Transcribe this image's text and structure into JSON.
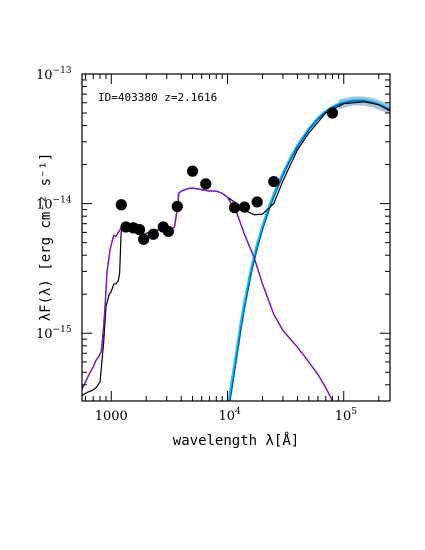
{
  "chart_data": {
    "type": "scatter",
    "title": "",
    "annotation": "ID=403380 z=2.1616",
    "xlabel": "wavelength λ[Å]",
    "ylabel": "λF(λ) [erg cm⁻² s⁻¹]",
    "xscale": "log",
    "yscale": "log",
    "xlim": [
      560,
      250000
    ],
    "ylim": [
      3e-16,
      1e-13
    ],
    "x_ticks": [
      {
        "value": 1000,
        "mantissa": "1000",
        "exp": ""
      },
      {
        "value": 10000,
        "mantissa": "10",
        "exp": "4"
      },
      {
        "value": 100000,
        "mantissa": "10",
        "exp": "5"
      }
    ],
    "y_ticks": [
      {
        "value": 1e-15,
        "mantissa": "10",
        "exp": "−15"
      },
      {
        "value": 1e-14,
        "mantissa": "10",
        "exp": "−14"
      },
      {
        "value": 1e-13,
        "mantissa": "10",
        "exp": "−13"
      }
    ],
    "colors": {
      "stellar_galaxy": "#000000",
      "total_model": "#7a1bb5",
      "dust_component": "#1f4fa8",
      "dust_component_alt": "#00d0ff",
      "dust_uncertainty": "#a7c3d8",
      "points": "#000000"
    },
    "points": [
      {
        "x": 1220,
        "y": 9.8e-15
      },
      {
        "x": 1340,
        "y": 6.6e-15
      },
      {
        "x": 1550,
        "y": 6.5e-15
      },
      {
        "x": 1750,
        "y": 6.3e-15
      },
      {
        "x": 1900,
        "y": 5.3e-15
      },
      {
        "x": 2300,
        "y": 5.8e-15
      },
      {
        "x": 2800,
        "y": 6.6e-15
      },
      {
        "x": 3100,
        "y": 6.1e-15
      },
      {
        "x": 3700,
        "y": 9.5e-15
      },
      {
        "x": 5000,
        "y": 1.78e-14
      },
      {
        "x": 6500,
        "y": 1.42e-14
      },
      {
        "x": 11500,
        "y": 9.3e-15
      },
      {
        "x": 14000,
        "y": 9.4e-15
      },
      {
        "x": 18000,
        "y": 1.03e-14
      },
      {
        "x": 25000,
        "y": 1.48e-14
      },
      {
        "x": 80000,
        "y": 5e-14
      }
    ],
    "series": [
      {
        "component": "stellar_galaxy",
        "x": [
          560,
          620,
          680,
          740,
          800,
          860,
          900,
          960,
          1000,
          1050,
          1100,
          1150,
          1180,
          1216,
          1250,
          1300,
          1400,
          1500,
          1600,
          1800,
          1900,
          2000,
          2200,
          2400,
          2600,
          2900,
          3200,
          3500,
          3650,
          3750,
          3800,
          4000,
          4500,
          5000,
          5500,
          6000,
          7000,
          8000,
          9000,
          10000,
          12000,
          14000,
          17000,
          20000,
          25000,
          30000,
          40000,
          50000,
          70000,
          100000,
          150000,
          200000,
          250000
        ],
        "y": [
          3.3e-16,
          3.5e-16,
          3.6e-16,
          3.8e-16,
          4.2e-16,
          8.5e-16,
          1.6e-15,
          2e-15,
          2.1e-15,
          2.4e-15,
          2.4e-15,
          2.55e-15,
          2.9e-15,
          6e-15,
          6.8e-15,
          6.6e-15,
          6.3e-15,
          6.1e-15,
          6.4e-15,
          6.2e-15,
          5.8e-15,
          5.9e-15,
          6.1e-15,
          6.2e-15,
          6.3e-15,
          6.2e-15,
          6.3e-15,
          6.6e-15,
          8.5e-15,
          1.02e-14,
          1.2e-14,
          1.25e-14,
          1.3e-14,
          1.32e-14,
          1.3e-14,
          1.28e-14,
          1.25e-14,
          1.25e-14,
          1.2e-14,
          1.12e-14,
          1e-14,
          8.9e-15,
          8.2e-15,
          8.3e-15,
          1e-14,
          1.5e-14,
          2.6e-14,
          3.5e-14,
          5e-14,
          5.9e-14,
          6.1e-14,
          5.8e-14,
          5.2e-14
        ]
      },
      {
        "component": "total_model",
        "x": [
          560,
          600,
          650,
          700,
          740,
          780,
          820,
          850,
          880,
          920,
          980,
          1050,
          1100,
          1150,
          1216,
          1250,
          1300,
          1400,
          1500,
          1600,
          1800,
          1900,
          2000,
          2200,
          2400,
          2600,
          2900,
          3200,
          3500,
          3650,
          3750,
          3800,
          4000,
          4500,
          5000,
          5500,
          6000,
          7000,
          8000,
          9000,
          10000,
          12000,
          14000,
          17000,
          20000,
          25000,
          30000,
          40000,
          50000,
          60000,
          70000,
          80000
        ],
        "y": [
          3.7e-16,
          4.2e-16,
          4.9e-16,
          5.5e-16,
          6.2e-16,
          6.6e-16,
          7.2e-16,
          1e-15,
          1.5e-15,
          3e-15,
          4.5e-15,
          5.7e-15,
          5.6e-15,
          6e-15,
          6.5e-15,
          6.8e-15,
          6.6e-15,
          6.3e-15,
          6.1e-15,
          6.4e-15,
          6.2e-15,
          5.8e-15,
          5.9e-15,
          6.1e-15,
          6.2e-15,
          6.3e-15,
          6.2e-15,
          6.3e-15,
          6.6e-15,
          8.5e-15,
          1.02e-14,
          1.2e-14,
          1.25e-14,
          1.3e-14,
          1.32e-14,
          1.3e-14,
          1.28e-14,
          1.25e-14,
          1.25e-14,
          1.2e-14,
          1.12e-14,
          8.5e-15,
          5.8e-15,
          3.8e-15,
          2.4e-15,
          1.4e-15,
          1.05e-15,
          7.8e-16,
          6e-16,
          4.8e-16,
          3.8e-16,
          3e-16
        ]
      },
      {
        "component": "dust_component",
        "x": [
          10500,
          11000,
          12000,
          13000,
          14000,
          16000,
          18000,
          20000,
          23000,
          26000,
          30000,
          35000,
          40000,
          50000,
          60000,
          70000,
          80000,
          90000,
          100000,
          120000,
          150000,
          180000,
          200000,
          250000
        ],
        "y": [
          3e-16,
          3.9e-16,
          6.5e-16,
          1.05e-15,
          1.55e-15,
          2.9e-15,
          4.5e-15,
          6.3e-15,
          9.2e-15,
          1.22e-14,
          1.65e-14,
          2.2e-14,
          2.75e-14,
          3.7e-14,
          4.5e-14,
          5.1e-14,
          5.5e-14,
          5.8e-14,
          6e-14,
          6.2e-14,
          6.2e-14,
          6e-14,
          5.8e-14,
          5.3e-14
        ]
      },
      {
        "component": "dust_component_alt",
        "x": [
          10300,
          11000,
          12000,
          13000,
          14000,
          16000,
          18000,
          20000,
          23000,
          26000,
          30000,
          35000,
          40000,
          50000,
          60000,
          70000,
          80000,
          90000,
          100000,
          120000,
          150000,
          180000,
          200000,
          250000
        ],
        "y": [
          3e-16,
          4.4e-16,
          7.2e-16,
          1.15e-15,
          1.7e-15,
          3.1e-15,
          4.8e-15,
          6.6e-15,
          9.6e-15,
          1.27e-14,
          1.7e-14,
          2.25e-14,
          2.8e-14,
          3.75e-14,
          4.55e-14,
          5.15e-14,
          5.55e-14,
          5.85e-14,
          6.05e-14,
          6.25e-14,
          6.25e-14,
          6.05e-14,
          5.85e-14,
          5.35e-14
        ]
      }
    ],
    "dust_band": {
      "x": [
        90000,
        100000,
        120000,
        150000,
        180000,
        200000,
        250000
      ],
      "low": [
        5.3e-14,
        5.5e-14,
        5.7e-14,
        5.7e-14,
        5.5e-14,
        5.3e-14,
        4.9e-14
      ],
      "high": [
        6.3e-14,
        6.5e-14,
        6.7e-14,
        6.7e-14,
        6.5e-14,
        6.3e-14,
        5.8e-14
      ]
    }
  }
}
